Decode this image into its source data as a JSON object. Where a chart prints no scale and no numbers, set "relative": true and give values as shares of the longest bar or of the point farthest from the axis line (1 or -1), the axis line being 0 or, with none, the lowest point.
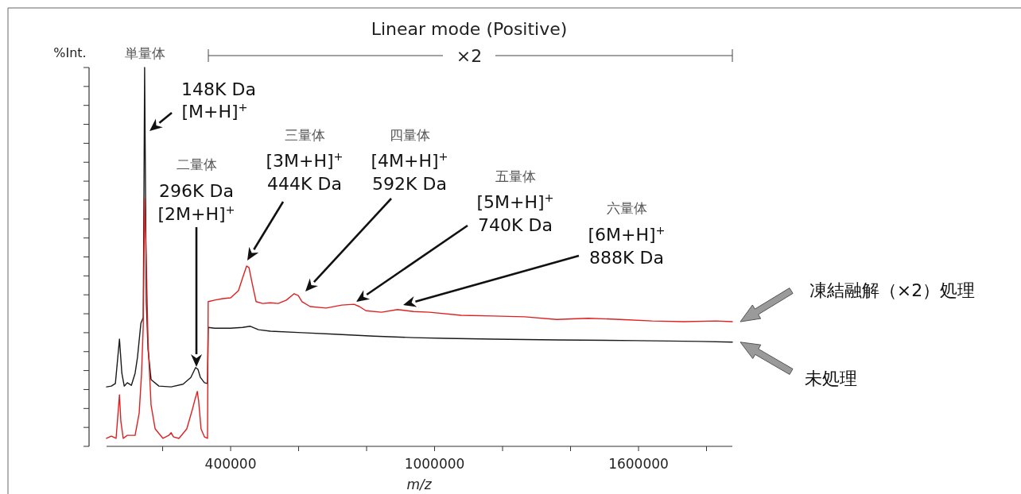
{
  "chart_data": {
    "type": "line",
    "title": "Linear mode (Positive)",
    "xlabel": "m/z",
    "ylabel": "%Int.",
    "relative": true,
    "xlim": [
      35000,
      1876000
    ],
    "xticks": [
      {
        "value": 200000,
        "label": null
      },
      400000,
      {
        "value": 600000,
        "label": null
      },
      {
        "value": 800000,
        "label": null
      },
      1000000,
      {
        "value": 1200000,
        "label": null
      },
      {
        "value": 1400000,
        "label": null
      },
      1600000,
      {
        "value": 1800000,
        "label": null
      }
    ],
    "series": [
      {
        "name": "凍結融解（×2）処理",
        "color": "#e02020",
        "x": [
          35000,
          49000,
          63000,
          73000,
          77000,
          84000,
          96000,
          119000,
          131000,
          138000,
          143000,
          147000,
          152000,
          157000,
          166000,
          178000,
          201000,
          218000,
          225000,
          232000,
          248000,
          271000,
          288000,
          297000,
          302000,
          306000,
          313000,
          323000,
          332000,
          334000,
          353000,
          377000,
          400000,
          423000,
          435000,
          447000,
          454000,
          463000,
          475000,
          494000,
          517000,
          540000,
          564000,
          587000,
          599000,
          610000,
          634000,
          681000,
          727000,
          763000,
          779000,
          798000,
          844000,
          891000,
          938000,
          985000,
          1078000,
          1172000,
          1265000,
          1359000,
          1452000,
          1546000,
          1640000,
          1733000,
          1827000,
          1876000
        ],
        "values": [
          0.021,
          0.027,
          0.021,
          0.136,
          0.067,
          0.021,
          0.029,
          0.029,
          0.088,
          0.193,
          0.319,
          0.654,
          0.486,
          0.277,
          0.109,
          0.046,
          0.021,
          0.029,
          0.036,
          0.025,
          0.021,
          0.046,
          0.099,
          0.13,
          0.145,
          0.119,
          0.046,
          0.025,
          0.021,
          0.382,
          0.386,
          0.39,
          0.392,
          0.411,
          0.444,
          0.476,
          0.472,
          0.432,
          0.382,
          0.377,
          0.379,
          0.377,
          0.386,
          0.403,
          0.398,
          0.382,
          0.369,
          0.365,
          0.373,
          0.375,
          0.369,
          0.358,
          0.354,
          0.361,
          0.356,
          0.354,
          0.346,
          0.344,
          0.342,
          0.335,
          0.338,
          0.335,
          0.331,
          0.329,
          0.331,
          0.329
        ]
      },
      {
        "name": "未処理",
        "color": "#1a1a1a",
        "x": [
          35000,
          49000,
          61000,
          73000,
          80000,
          87000,
          96000,
          108000,
          119000,
          126000,
          136000,
          143000,
          147000,
          152000,
          157000,
          166000,
          189000,
          225000,
          260000,
          283000,
          297000,
          304000,
          311000,
          323000,
          332000,
          334000,
          353000,
          400000,
          435000,
          458000,
          482000,
          517000,
          610000,
          704000,
          821000,
          938000,
          1031000,
          1172000,
          1359000,
          1593000,
          1780000,
          1876000
        ],
        "values": [
          0.157,
          0.159,
          0.166,
          0.283,
          0.193,
          0.159,
          0.168,
          0.161,
          0.193,
          0.235,
          0.325,
          0.34,
          1,
          0.382,
          0.256,
          0.176,
          0.159,
          0.157,
          0.164,
          0.182,
          0.208,
          0.203,
          0.182,
          0.168,
          0.166,
          0.314,
          0.312,
          0.312,
          0.314,
          0.317,
          0.308,
          0.304,
          0.3,
          0.296,
          0.291,
          0.287,
          0.285,
          0.283,
          0.281,
          0.279,
          0.277,
          0.275
        ]
      }
    ],
    "annotations": [
      "×2",
      "単量体",
      "148K Da\n[M+H]$^{+}$",
      "二量体\n296K Da\n[2M+H]$^{+}$",
      "三量体\n[3M+H]$^{+}$\n444K Da",
      "四量体\n[4M+H]$^{+}$\n592K Da",
      "五量体\n[5M+H]$^{+}$\n740K Da",
      "六量体\n[6M+H]$^{+}$\n888K Da"
    ]
  }
}
